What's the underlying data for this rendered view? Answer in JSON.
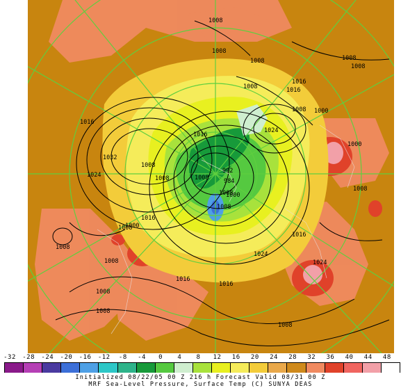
{
  "colorbar": {
    "ticks": [
      "-32",
      "-28",
      "-24",
      "-20",
      "-16",
      "-12",
      "-8",
      "-4",
      "0",
      "4",
      "8",
      "12",
      "16",
      "20",
      "24",
      "28",
      "32",
      "36",
      "40",
      "44",
      "48"
    ],
    "colors": [
      "#8a1a8a",
      "#b53fb5",
      "#4a3aa0",
      "#3c6fd8",
      "#4ea0e6",
      "#2cc7c7",
      "#2db38a",
      "#179a3a",
      "#55c940",
      "#cfeecf",
      "#a8e23c",
      "#e8f020",
      "#f5ec5a",
      "#f3cc3a",
      "#e9a84a",
      "#cf8a1c",
      "#f08a60",
      "#e0422a",
      "#f06560",
      "#f2a0a8",
      "#ffffff"
    ]
  },
  "footer": {
    "line1": "Initialized 08/22/05 00 Z  216 h Forecast Valid 08/31 00 Z",
    "line2": "MRF Sea-Level Pressure, Surface Temp (C)    SUNYA DEAS"
  },
  "isobar_labels": [
    "1008",
    "1008",
    "1008",
    "1008",
    "1008",
    "1008",
    "1016",
    "1016",
    "1000",
    "1016",
    "1024",
    "1000",
    "1032",
    "1024",
    "1008",
    "1016",
    "992",
    "984",
    "1000",
    "1008",
    "1008",
    "1008",
    "1008",
    "1000",
    "1016",
    "1008",
    "1016",
    "1024",
    "1016",
    "1024",
    "1008",
    "1008",
    "1008",
    "1008",
    "1016",
    "1008",
    "1008",
    "1008"
  ],
  "colors": {
    "background_warm": "#c8850f",
    "land_salmon": "#f08a60",
    "warm_yellow": "#f3cc3a",
    "cold_green": "#179a3a",
    "coldest_blue": "#4ea0e6",
    "grid_lines": "#5fcf3f",
    "isobars": "#000000"
  }
}
